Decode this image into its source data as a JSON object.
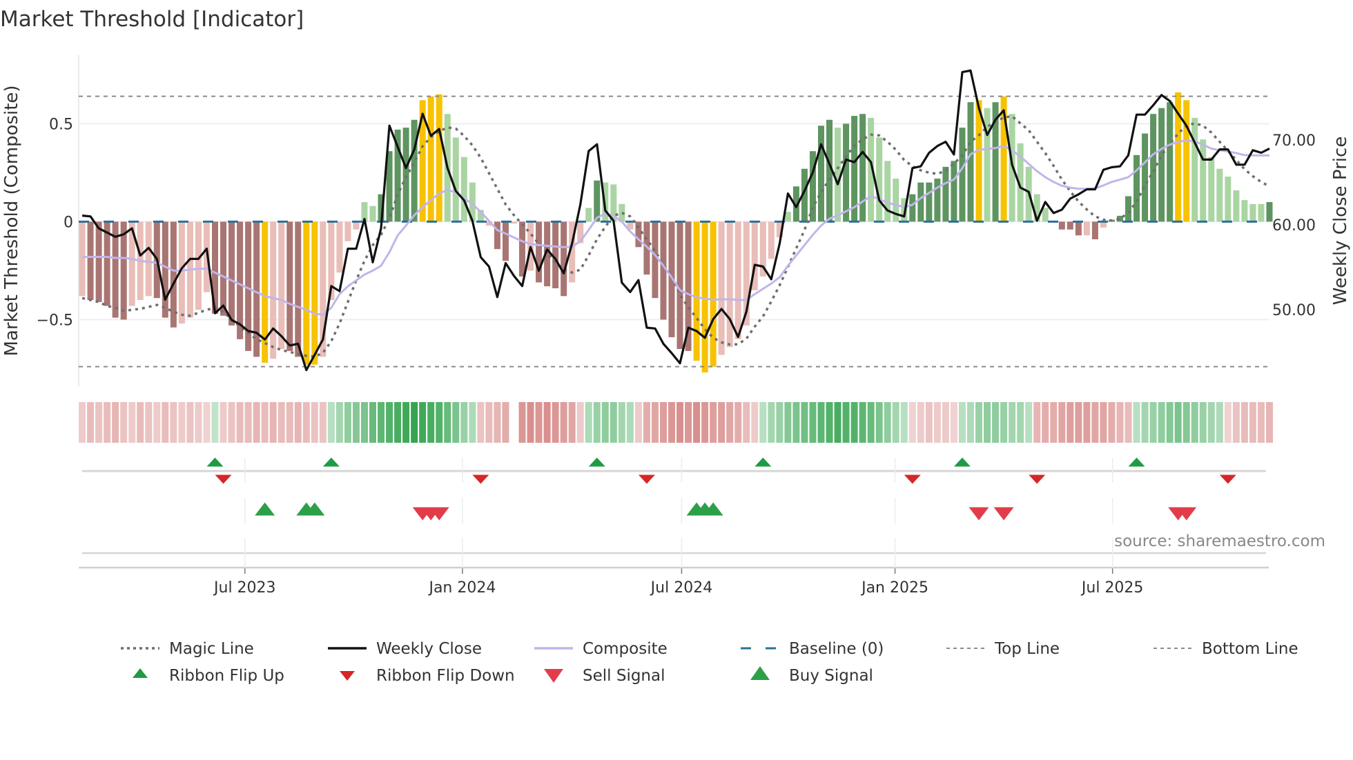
{
  "title": "Market Threshold [Indicator]",
  "source_text": "source: sharemaestro.com",
  "chart_data": {
    "type": "bar+line",
    "title": "Market Threshold [Indicator]",
    "ylabel_left": "Market Threshold (Composite)",
    "ylabel_right": "Weekly Close Price",
    "x_unit": "week index (weekly bars)",
    "xlim": [
      -0.42,
      143.5
    ],
    "ylim_left": [
      -0.84,
      0.85
    ],
    "ylim_right": [
      41.0,
      80.0
    ],
    "grid": true,
    "legend_position": "bottom",
    "left_ticks": [
      {
        "value": 0.5,
        "label": "0.5"
      },
      {
        "value": 0,
        "label": "0"
      },
      {
        "value": -0.5,
        "label": "−0.5"
      }
    ],
    "right_ticks": [
      {
        "value": 70,
        "label": "70.00"
      },
      {
        "value": 60,
        "label": "60.00"
      },
      {
        "value": 50,
        "label": "50.00"
      }
    ],
    "x_ticks": [
      {
        "week": 19.6,
        "label": "Jul 2023"
      },
      {
        "week": 45.8,
        "label": "Jan 2024"
      },
      {
        "week": 72.2,
        "label": "Jul 2024"
      },
      {
        "week": 97.9,
        "label": "Jan 2025"
      },
      {
        "week": 124.1,
        "label": "Jul 2025"
      }
    ],
    "top_line": 0.64,
    "bottom_line": -0.74,
    "baseline": 0,
    "colors": {
      "bar_dn": "#a97572",
      "bar_ln": "#e9bdb8",
      "bar_up": "#5e9460",
      "bar_lu": "#aad5a3",
      "bar_x": "#f7c200",
      "close": "#111111",
      "composite": "#c0b6ea",
      "magic": "#6f6f6f",
      "baseline": "#2b6f98",
      "threshold": "#8a8a8a",
      "ribbon_pos": "#2ca048",
      "ribbon_neg": "#cc6a68",
      "flip_up": "#1f9a45",
      "flip_down": "#d62728",
      "sell": "#e23c4a",
      "buy": "#2ca048"
    },
    "composite_bars": [
      -0.38,
      -0.4,
      -0.41,
      -0.43,
      -0.49,
      -0.5,
      -0.43,
      -0.4,
      -0.38,
      -0.39,
      -0.49,
      -0.54,
      -0.52,
      -0.49,
      -0.45,
      -0.36,
      -0.47,
      -0.48,
      -0.53,
      -0.6,
      -0.66,
      -0.69,
      -0.72,
      -0.7,
      -0.65,
      -0.66,
      -0.69,
      -0.73,
      -0.73,
      -0.69,
      -0.4,
      -0.26,
      -0.1,
      -0.04,
      0.1,
      0.08,
      0.14,
      0.36,
      0.47,
      0.48,
      0.52,
      0.62,
      0.64,
      0.65,
      0.55,
      0.43,
      0.33,
      0.2,
      0.06,
      -0.02,
      -0.14,
      -0.2,
      -0.01,
      -0.28,
      -0.25,
      -0.31,
      -0.33,
      -0.34,
      -0.38,
      -0.31,
      -0.11,
      0.07,
      0.21,
      0.2,
      0.19,
      0.09,
      -0.04,
      -0.13,
      -0.27,
      -0.39,
      -0.5,
      -0.59,
      -0.65,
      -0.66,
      -0.71,
      -0.77,
      -0.74,
      -0.68,
      -0.64,
      -0.6,
      -0.53,
      -0.35,
      -0.28,
      -0.19,
      -0.08,
      0.05,
      0.18,
      0.27,
      0.36,
      0.49,
      0.52,
      0.48,
      0.5,
      0.54,
      0.55,
      0.53,
      0.43,
      0.31,
      0.22,
      0.12,
      0.14,
      0.2,
      0.2,
      0.22,
      0.28,
      0.31,
      0.48,
      0.61,
      0.62,
      0.58,
      0.61,
      0.64,
      0.55,
      0.4,
      0.28,
      0.14,
      0.07,
      0.005,
      -0.04,
      -0.04,
      -0.07,
      -0.07,
      -0.09,
      -0.03,
      0.01,
      0.03,
      0.13,
      0.34,
      0.45,
      0.55,
      0.58,
      0.61,
      0.66,
      0.62,
      0.53,
      0.42,
      0.33,
      0.27,
      0.23,
      0.16,
      0.11,
      0.09,
      0.09,
      0.1
    ],
    "bar_class": [
      "ln",
      "dn",
      "dn",
      "dn",
      "dn",
      "dn",
      "ln",
      "ln",
      "ln",
      "dn",
      "dn",
      "dn",
      "ln",
      "ln",
      "ln",
      "ln",
      "dn",
      "dn",
      "dn",
      "dn",
      "dn",
      "dn",
      "x",
      "ln",
      "ln",
      "dn",
      "dn",
      "x",
      "x",
      "ln",
      "ln",
      "ln",
      "ln",
      "ln",
      "lu",
      "lu",
      "up",
      "up",
      "up",
      "up",
      "up",
      "x",
      "x",
      "x",
      "lu",
      "lu",
      "lu",
      "lu",
      "lu",
      "ln",
      "dn",
      "dn",
      "ln",
      "dn",
      "ln",
      "dn",
      "dn",
      "dn",
      "dn",
      "ln",
      "ln",
      "lu",
      "up",
      "lu",
      "lu",
      "lu",
      "ln",
      "dn",
      "dn",
      "dn",
      "dn",
      "dn",
      "dn",
      "dn",
      "x",
      "x",
      "x",
      "ln",
      "ln",
      "ln",
      "ln",
      "ln",
      "ln",
      "ln",
      "ln",
      "lu",
      "up",
      "up",
      "up",
      "up",
      "up",
      "lu",
      "up",
      "up",
      "up",
      "lu",
      "lu",
      "lu",
      "lu",
      "lu",
      "up",
      "up",
      "up",
      "up",
      "up",
      "up",
      "up",
      "up",
      "x",
      "lu",
      "up",
      "x",
      "lu",
      "lu",
      "lu",
      "lu",
      "lu",
      "lu",
      "dn",
      "dn",
      "dn",
      "ln",
      "dn",
      "ln",
      "up",
      "up",
      "up",
      "up",
      "up",
      "up",
      "up",
      "up",
      "x",
      "x",
      "lu",
      "lu",
      "lu",
      "lu",
      "lu",
      "lu",
      "lu",
      "lu",
      "lu",
      "up"
    ],
    "weekly_close": [
      61.1,
      61.0,
      59.6,
      59.1,
      58.6,
      58.9,
      59.6,
      56.4,
      57.3,
      56.0,
      51.2,
      53.1,
      54.9,
      56.0,
      56.0,
      57.2,
      49.6,
      50.5,
      48.8,
      48.3,
      47.5,
      47.3,
      46.5,
      47.8,
      46.9,
      45.8,
      46.0,
      42.9,
      44.7,
      46.5,
      52.8,
      52.2,
      57.2,
      57.2,
      60.7,
      55.6,
      59.6,
      71.7,
      69.2,
      66.7,
      68.9,
      73.1,
      70.5,
      71.3,
      66.7,
      64.0,
      62.9,
      60.5,
      56.2,
      55.1,
      51.5,
      55.5,
      54.0,
      52.8,
      57.4,
      54.6,
      57.1,
      56.0,
      54.3,
      57.8,
      62.4,
      68.7,
      69.5,
      61.7,
      60.5,
      53.2,
      52.1,
      53.5,
      47.9,
      47.8,
      46.0,
      44.9,
      43.7,
      47.9,
      47.5,
      46.7,
      48.9,
      50.1,
      48.9,
      46.8,
      49.8,
      55.3,
      55.1,
      53.6,
      57.8,
      63.7,
      62.1,
      64.0,
      66.2,
      69.5,
      67.2,
      64.8,
      67.7,
      67.4,
      68.6,
      67.4,
      62.9,
      61.7,
      61.3,
      61.0,
      66.7,
      66.9,
      68.5,
      69.3,
      69.8,
      68.3,
      78.0,
      78.2,
      73.8,
      70.6,
      72.4,
      73.5,
      67.1,
      64.4,
      63.9,
      60.5,
      62.7,
      61.4,
      61.8,
      63.1,
      63.6,
      64.2,
      64.2,
      66.5,
      66.8,
      66.9,
      68.2,
      73.0,
      73.0,
      74.1,
      75.3,
      74.6,
      73.1,
      71.7,
      69.7,
      67.7,
      67.7,
      68.9,
      68.9,
      67.1,
      67.1,
      68.8,
      68.5,
      69.0
    ],
    "composite_line": [
      -0.18,
      -0.18,
      -0.18,
      -0.18,
      -0.185,
      -0.185,
      -0.19,
      -0.2,
      -0.205,
      -0.21,
      -0.23,
      -0.25,
      -0.25,
      -0.245,
      -0.24,
      -0.24,
      -0.26,
      -0.28,
      -0.3,
      -0.32,
      -0.34,
      -0.36,
      -0.38,
      -0.39,
      -0.4,
      -0.42,
      -0.435,
      -0.45,
      -0.47,
      -0.475,
      -0.44,
      -0.37,
      -0.33,
      -0.3,
      -0.27,
      -0.25,
      -0.225,
      -0.156,
      -0.07,
      -0.02,
      0.033,
      0.074,
      0.11,
      0.144,
      0.162,
      0.15,
      0.12,
      0.09,
      0.05,
      0.004,
      -0.043,
      -0.061,
      -0.081,
      -0.1,
      -0.114,
      -0.12,
      -0.123,
      -0.127,
      -0.13,
      -0.128,
      -0.1,
      -0.043,
      0.02,
      0.041,
      0.03,
      0.0,
      -0.05,
      -0.09,
      -0.128,
      -0.17,
      -0.225,
      -0.284,
      -0.35,
      -0.37,
      -0.386,
      -0.393,
      -0.398,
      -0.397,
      -0.396,
      -0.4,
      -0.4,
      -0.37,
      -0.343,
      -0.316,
      -0.284,
      -0.225,
      -0.172,
      -0.12,
      -0.067,
      -0.02,
      0.015,
      0.033,
      0.053,
      0.074,
      0.103,
      0.13,
      0.115,
      0.097,
      0.086,
      0.074,
      0.086,
      0.12,
      0.147,
      0.174,
      0.197,
      0.215,
      0.273,
      0.344,
      0.367,
      0.371,
      0.376,
      0.387,
      0.364,
      0.332,
      0.295,
      0.258,
      0.227,
      0.203,
      0.183,
      0.174,
      0.168,
      0.168,
      0.17,
      0.185,
      0.203,
      0.215,
      0.227,
      0.262,
      0.303,
      0.344,
      0.371,
      0.393,
      0.408,
      0.414,
      0.41,
      0.393,
      0.373,
      0.365,
      0.358,
      0.35,
      0.34,
      0.338,
      0.338,
      0.338
    ],
    "magic_line": [
      -0.39,
      -0.4,
      -0.41,
      -0.43,
      -0.44,
      -0.455,
      -0.45,
      -0.445,
      -0.435,
      -0.425,
      -0.44,
      -0.46,
      -0.475,
      -0.48,
      -0.465,
      -0.45,
      -0.44,
      -0.46,
      -0.5,
      -0.535,
      -0.57,
      -0.6,
      -0.62,
      -0.64,
      -0.655,
      -0.665,
      -0.675,
      -0.685,
      -0.69,
      -0.67,
      -0.61,
      -0.52,
      -0.41,
      -0.3,
      -0.2,
      -0.12,
      -0.067,
      0.018,
      0.138,
      0.227,
      0.303,
      0.385,
      0.432,
      0.461,
      0.481,
      0.475,
      0.438,
      0.39,
      0.326,
      0.248,
      0.168,
      0.088,
      0.033,
      -0.014,
      -0.06,
      -0.114,
      -0.16,
      -0.208,
      -0.243,
      -0.26,
      -0.245,
      -0.172,
      -0.09,
      -0.026,
      0.03,
      0.045,
      0.027,
      -0.03,
      -0.09,
      -0.15,
      -0.22,
      -0.278,
      -0.372,
      -0.437,
      -0.492,
      -0.548,
      -0.593,
      -0.616,
      -0.627,
      -0.626,
      -0.597,
      -0.536,
      -0.484,
      -0.407,
      -0.325,
      -0.231,
      -0.137,
      -0.043,
      0.074,
      0.15,
      0.215,
      0.273,
      0.332,
      0.388,
      0.42,
      0.444,
      0.44,
      0.408,
      0.367,
      0.315,
      0.283,
      0.262,
      0.25,
      0.244,
      0.26,
      0.297,
      0.338,
      0.408,
      0.441,
      0.485,
      0.51,
      0.532,
      0.538,
      0.502,
      0.467,
      0.408,
      0.35,
      0.285,
      0.215,
      0.156,
      0.103,
      0.062,
      0.027,
      0.01,
      0.006,
      0.015,
      0.045,
      0.103,
      0.185,
      0.256,
      0.338,
      0.397,
      0.45,
      0.49,
      0.502,
      0.49,
      0.455,
      0.408,
      0.362,
      0.315,
      0.268,
      0.232,
      0.203,
      0.18
    ],
    "ribbon": [
      -0.2,
      -0.3,
      -0.25,
      -0.3,
      -0.35,
      -0.25,
      -0.2,
      -0.3,
      -0.25,
      -0.2,
      -0.3,
      -0.25,
      -0.2,
      -0.25,
      -0.2,
      -0.15,
      0.15,
      -0.2,
      -0.25,
      -0.3,
      -0.3,
      -0.35,
      -0.3,
      -0.35,
      -0.3,
      -0.3,
      -0.35,
      -0.3,
      -0.25,
      -0.25,
      0.2,
      0.3,
      0.4,
      0.45,
      0.5,
      0.6,
      0.65,
      0.7,
      0.75,
      0.8,
      0.85,
      0.8,
      0.75,
      0.7,
      0.6,
      0.5,
      0.35,
      0.25,
      -0.25,
      -0.3,
      -0.35,
      -0.4,
      null,
      -0.55,
      -0.6,
      -0.55,
      -0.6,
      -0.55,
      -0.5,
      -0.45,
      -0.2,
      0.25,
      0.35,
      0.4,
      0.4,
      0.3,
      0.25,
      -0.2,
      -0.4,
      -0.45,
      -0.5,
      -0.55,
      -0.6,
      -0.55,
      -0.6,
      -0.55,
      -0.5,
      -0.5,
      -0.45,
      -0.4,
      -0.3,
      -0.2,
      0.2,
      0.3,
      0.35,
      0.45,
      0.5,
      0.55,
      0.6,
      0.65,
      0.7,
      0.75,
      0.7,
      0.7,
      0.65,
      0.6,
      0.5,
      0.4,
      0.3,
      0.2,
      -0.15,
      -0.2,
      -0.25,
      -0.2,
      -0.2,
      -0.15,
      0.2,
      0.25,
      0.35,
      0.4,
      0.4,
      0.35,
      0.3,
      0.3,
      0.2,
      -0.35,
      -0.4,
      -0.4,
      -0.45,
      -0.5,
      -0.5,
      -0.5,
      -0.45,
      -0.45,
      -0.4,
      -0.35,
      -0.3,
      0.2,
      0.3,
      0.35,
      0.4,
      0.45,
      0.5,
      0.45,
      0.4,
      0.35,
      0.3,
      0.25,
      -0.15,
      -0.25,
      -0.3,
      -0.3,
      -0.3,
      -0.35
    ],
    "ribbon_flip_up": [
      16,
      30,
      62,
      82,
      106,
      127
    ],
    "ribbon_flip_down": [
      17,
      48,
      68,
      100,
      115,
      138
    ],
    "sell_signals": [
      41,
      42,
      43,
      108,
      111,
      132,
      133
    ],
    "buy_signals": [
      22,
      27,
      28,
      74,
      75,
      76
    ],
    "legend": [
      {
        "label": "Magic Line",
        "kind": "magic"
      },
      {
        "label": "Weekly Close",
        "kind": "close"
      },
      {
        "label": "Composite",
        "kind": "composite"
      },
      {
        "label": "Baseline (0)",
        "kind": "baseline"
      },
      {
        "label": "Top Line",
        "kind": "threshold"
      },
      {
        "label": "Bottom Line",
        "kind": "threshold"
      },
      {
        "label": "Ribbon Flip Up",
        "kind": "flip_up"
      },
      {
        "label": "Ribbon Flip Down",
        "kind": "flip_down"
      },
      {
        "label": "Sell Signal",
        "kind": "sell"
      },
      {
        "label": "Buy Signal",
        "kind": "buy"
      }
    ]
  }
}
